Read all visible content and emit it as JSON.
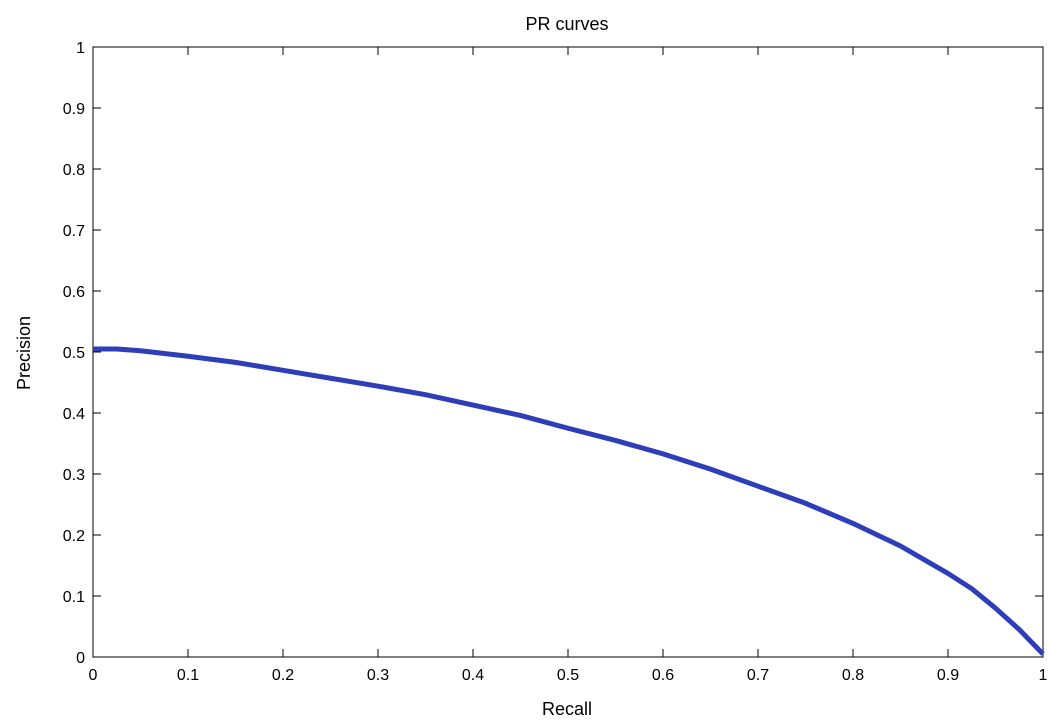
{
  "chart_data": {
    "type": "line",
    "title": "PR curves",
    "xlabel": "Recall",
    "ylabel": "Precision",
    "xlim": [
      0,
      1
    ],
    "ylim": [
      0,
      1
    ],
    "x_ticks": [
      "0",
      "0.1",
      "0.2",
      "0.3",
      "0.4",
      "0.5",
      "0.6",
      "0.7",
      "0.8",
      "0.9",
      "1"
    ],
    "y_ticks": [
      "0",
      "0.1",
      "0.2",
      "0.3",
      "0.4",
      "0.5",
      "0.6",
      "0.7",
      "0.8",
      "0.9",
      "1"
    ],
    "grid": false,
    "legend": "none",
    "series": [
      {
        "color": "#2e3db8",
        "x": [
          0,
          0.025,
          0.05,
          0.1,
          0.15,
          0.2,
          0.25,
          0.3,
          0.35,
          0.4,
          0.45,
          0.5,
          0.55,
          0.6,
          0.65,
          0.7,
          0.75,
          0.8,
          0.85,
          0.9,
          0.925,
          0.95,
          0.975,
          1.0
        ],
        "y": [
          0.505,
          0.505,
          0.502,
          0.493,
          0.483,
          0.47,
          0.457,
          0.444,
          0.43,
          0.413,
          0.396,
          0.375,
          0.355,
          0.333,
          0.308,
          0.28,
          0.252,
          0.219,
          0.182,
          0.137,
          0.112,
          0.08,
          0.045,
          0.005
        ]
      }
    ]
  }
}
